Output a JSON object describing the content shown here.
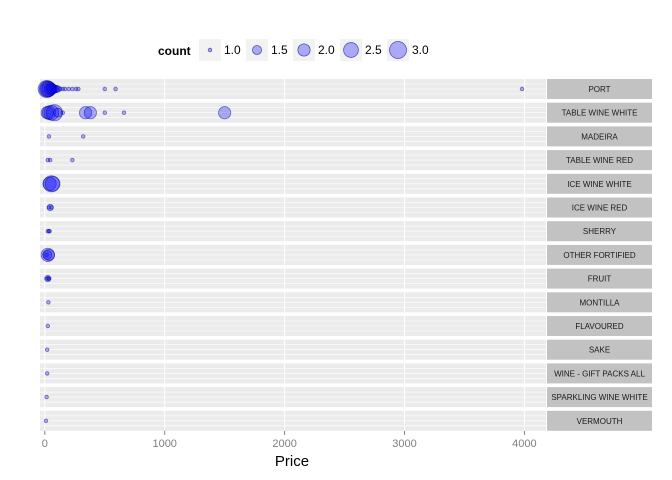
{
  "chart_data": {
    "type": "scatter",
    "subtype": "faceted bubble",
    "xlabel": "Price",
    "ylabel": "",
    "xlim": [
      -40,
      4180
    ],
    "xticks": [
      0,
      1000,
      2000,
      3000,
      4000
    ],
    "grid": true,
    "legend": {
      "title": "count",
      "position": "top",
      "values": [
        1.0,
        1.5,
        2.0,
        2.5,
        3.0
      ],
      "labels": [
        "1.0",
        "1.5",
        "2.0",
        "2.5",
        "3.0"
      ]
    },
    "colors": {
      "point_fill": "#0000ff",
      "point_stroke": "#00008b",
      "panel_bg": "#ebebeb",
      "strip_bg": "#c2c2c2",
      "grid": "#ffffff"
    },
    "facets": [
      {
        "label": "PORT",
        "points": [
          [
            15,
            3.0
          ],
          [
            22,
            2.8
          ],
          [
            28,
            2.6
          ],
          [
            35,
            2.4
          ],
          [
            45,
            2.0
          ],
          [
            55,
            1.8
          ],
          [
            65,
            1.6
          ],
          [
            80,
            1.4
          ],
          [
            95,
            1.3
          ],
          [
            110,
            1.2
          ],
          [
            130,
            1.0
          ],
          [
            150,
            1.0
          ],
          [
            170,
            1.0
          ],
          [
            200,
            1.0
          ],
          [
            230,
            1.0
          ],
          [
            260,
            1.0
          ],
          [
            280,
            1.0
          ],
          [
            500,
            1.0
          ],
          [
            590,
            1.0
          ],
          [
            3980,
            1.0
          ]
        ]
      },
      {
        "label": "TABLE WINE WHITE",
        "points": [
          [
            20,
            2.0
          ],
          [
            35,
            2.2
          ],
          [
            55,
            2.5
          ],
          [
            80,
            2.8
          ],
          [
            110,
            1.5
          ],
          [
            150,
            1.0
          ],
          [
            340,
            2.0
          ],
          [
            380,
            2.0
          ],
          [
            500,
            1.0
          ],
          [
            660,
            1.0
          ],
          [
            1500,
            2.0
          ]
        ]
      },
      {
        "label": "MADEIRA",
        "points": [
          [
            35,
            1.0
          ],
          [
            320,
            1.0
          ]
        ]
      },
      {
        "label": "TABLE WINE RED",
        "points": [
          [
            25,
            1.0
          ],
          [
            45,
            1.0
          ],
          [
            230,
            1.0
          ]
        ]
      },
      {
        "label": "ICE WINE WHITE",
        "points": [
          [
            40,
            2.2
          ],
          [
            55,
            2.8
          ],
          [
            65,
            2.5
          ]
        ]
      },
      {
        "label": "ICE WINE RED",
        "points": [
          [
            35,
            1.0
          ],
          [
            45,
            1.2
          ],
          [
            55,
            1.0
          ]
        ]
      },
      {
        "label": "SHERRY",
        "points": [
          [
            25,
            1.0
          ],
          [
            35,
            1.0
          ],
          [
            40,
            1.0
          ]
        ]
      },
      {
        "label": "OTHER FORTIFIED",
        "points": [
          [
            15,
            1.0
          ],
          [
            20,
            1.5
          ],
          [
            25,
            2.2
          ],
          [
            35,
            1.8
          ]
        ]
      },
      {
        "label": "FRUIT",
        "points": [
          [
            20,
            1.0
          ],
          [
            25,
            1.2
          ],
          [
            30,
            1.0
          ],
          [
            35,
            1.0
          ]
        ]
      },
      {
        "label": "MONTILLA",
        "points": [
          [
            30,
            1.0
          ]
        ]
      },
      {
        "label": "FLAVOURED",
        "points": [
          [
            25,
            1.0
          ]
        ]
      },
      {
        "label": "SAKE",
        "points": [
          [
            20,
            1.0
          ]
        ]
      },
      {
        "label": "WINE - GIFT PACKS ALL",
        "points": [
          [
            20,
            1.0
          ]
        ]
      },
      {
        "label": "SPARKLING WINE WHITE",
        "points": [
          [
            15,
            1.0
          ]
        ]
      },
      {
        "label": "VERMOUTH",
        "points": [
          [
            10,
            1.0
          ]
        ]
      }
    ]
  }
}
